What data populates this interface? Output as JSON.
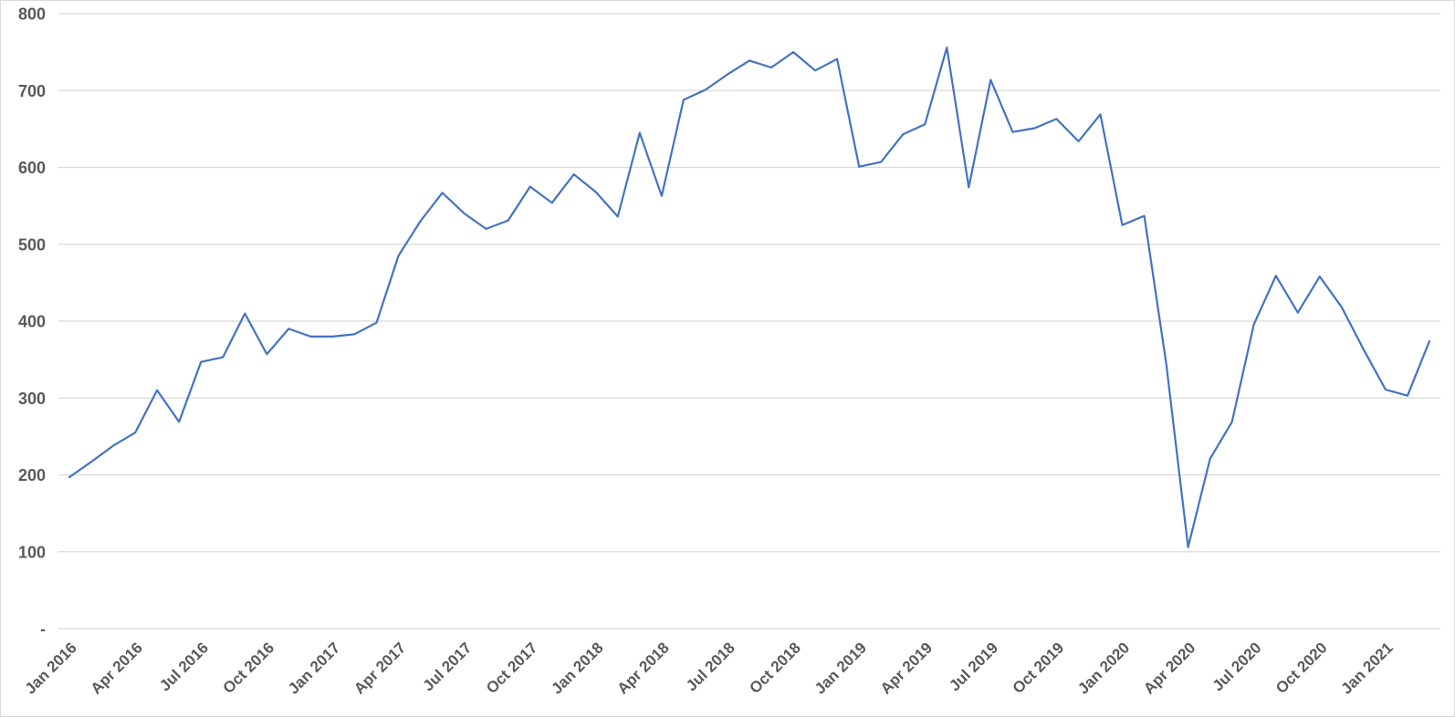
{
  "chart_data": {
    "type": "line",
    "title": "",
    "xlabel": "",
    "ylabel": "",
    "legend": "none",
    "grid": "horizontal",
    "ylim": [
      0,
      800
    ],
    "ytick_step": 100,
    "ytick_labels": [
      "-",
      "100",
      "200",
      "300",
      "400",
      "500",
      "600",
      "700",
      "800"
    ],
    "x_tick_every": 3,
    "x_label_rotation_deg": 45,
    "categories": [
      "Jan 2016",
      "Feb 2016",
      "Mar 2016",
      "Apr 2016",
      "May 2016",
      "Jun 2016",
      "Jul 2016",
      "Aug 2016",
      "Sep 2016",
      "Oct 2016",
      "Nov 2016",
      "Dec 2016",
      "Jan 2017",
      "Feb 2017",
      "Mar 2017",
      "Apr 2017",
      "May 2017",
      "Jun 2017",
      "Jul 2017",
      "Aug 2017",
      "Sep 2017",
      "Oct 2017",
      "Nov 2017",
      "Dec 2017",
      "Jan 2018",
      "Feb 2018",
      "Mar 2018",
      "Apr 2018",
      "May 2018",
      "Jun 2018",
      "Jul 2018",
      "Aug 2018",
      "Sep 2018",
      "Oct 2018",
      "Nov 2018",
      "Dec 2018",
      "Jan 2019",
      "Feb 2019",
      "Mar 2019",
      "Apr 2019",
      "May 2019",
      "Jun 2019",
      "Jul 2019",
      "Aug 2019",
      "Sep 2019",
      "Oct 2019",
      "Nov 2019",
      "Dec 2019",
      "Jan 2020",
      "Feb 2020",
      "Mar 2020",
      "Apr 2020",
      "May 2020",
      "Jun 2020",
      "Jul 2020",
      "Aug 2020",
      "Sep 2020",
      "Oct 2020",
      "Nov 2020",
      "Dec 2020",
      "Jan 2021",
      "Feb 2021",
      "Mar 2021"
    ],
    "values": [
      197,
      217,
      238,
      255,
      310,
      269,
      347,
      353,
      410,
      357,
      390,
      380,
      380,
      383,
      398,
      485,
      530,
      567,
      540,
      520,
      531,
      575,
      554,
      591,
      568,
      536,
      645,
      563,
      688,
      701,
      721,
      739,
      730,
      750,
      726,
      741,
      601,
      607,
      643,
      656,
      756,
      574,
      714,
      646,
      651,
      663,
      634,
      669,
      525,
      537,
      345,
      106,
      221,
      269,
      396,
      459,
      411,
      458,
      418,
      363,
      311,
      303,
      374
    ],
    "line_color": "#4472C4",
    "grid_color": "#D9D9D9",
    "label_color": "#595959",
    "background_color": "#FFFFFF",
    "border_color": "#D9D9D9"
  }
}
